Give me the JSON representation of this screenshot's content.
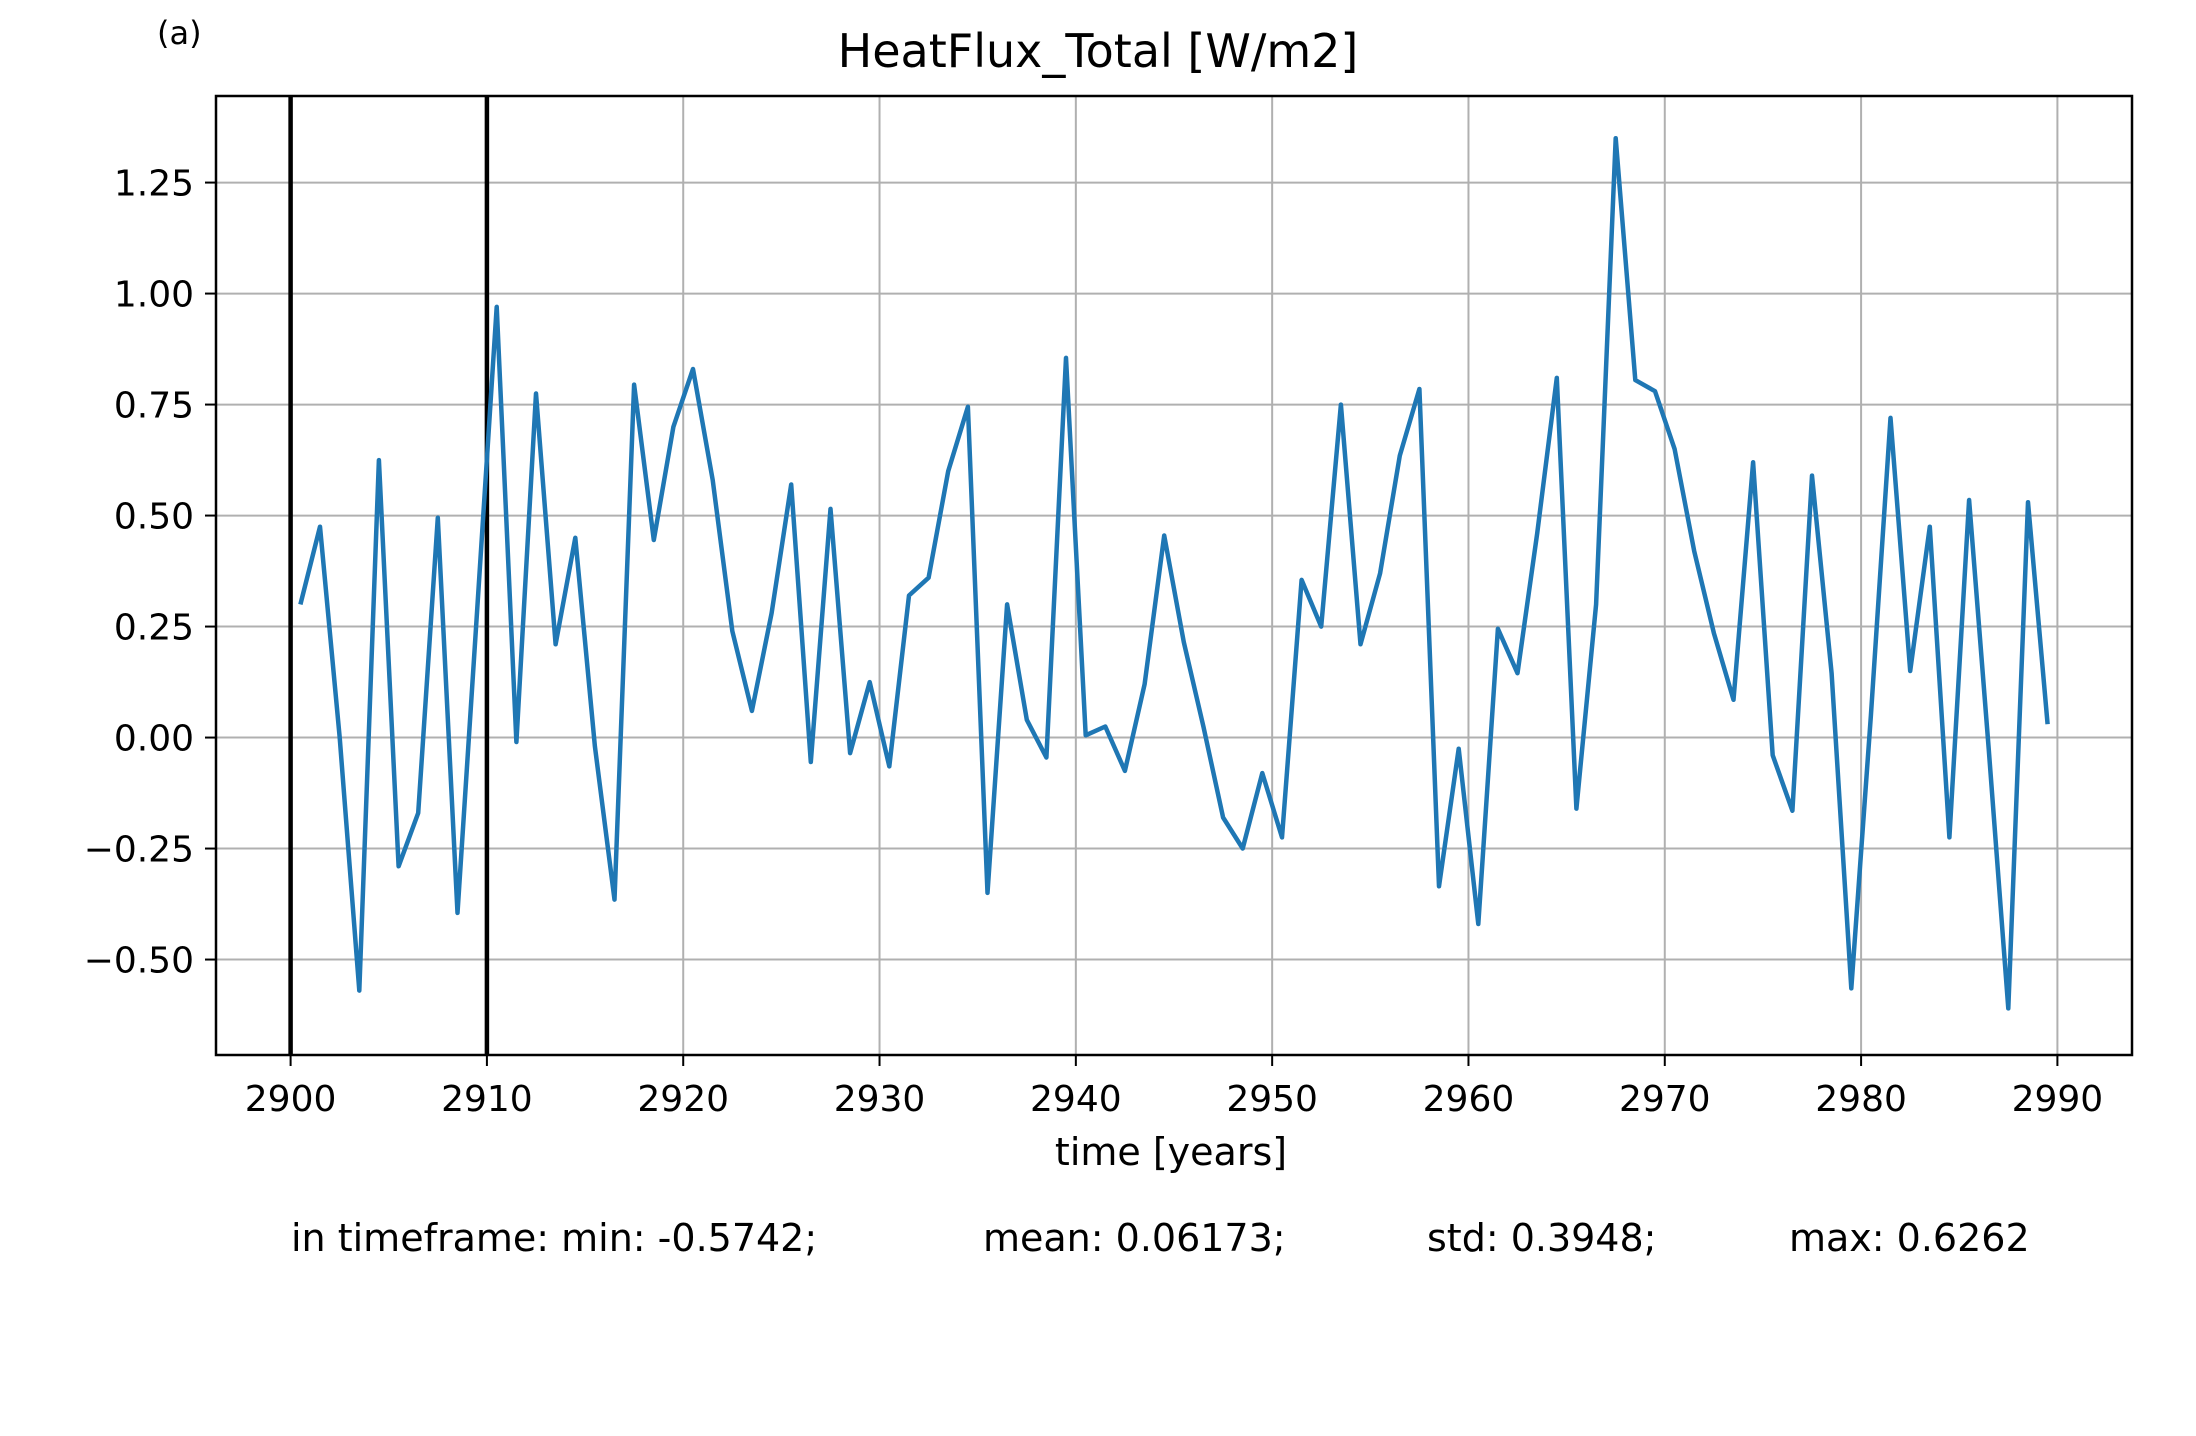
{
  "chart_data": {
    "type": "line",
    "panel_label": "(a)",
    "title": "HeatFlux_Total [W/m2]",
    "xlabel": "time [years]",
    "ylabel": "",
    "xlim": [
      2896.2,
      2993.8
    ],
    "ylim": [
      -0.715,
      1.445
    ],
    "x_ticks": [
      2900,
      2910,
      2920,
      2930,
      2940,
      2950,
      2960,
      2970,
      2980,
      2990
    ],
    "y_ticks": [
      -0.5,
      -0.25,
      0.0,
      0.25,
      0.5,
      0.75,
      1.0,
      1.25
    ],
    "y_tick_labels": [
      "−0.50",
      "−0.25",
      "0.00",
      "0.25",
      "0.50",
      "0.75",
      "1.00",
      "1.25"
    ],
    "grid": true,
    "line_color": "#1f77b4",
    "vertical_markers": [
      2900,
      2910
    ],
    "marker_color": "#000000",
    "series": [
      {
        "x": [
          2900.5,
          2901.5,
          2902.5,
          2903.5,
          2904.5,
          2905.5,
          2906.5,
          2907.5,
          2908.5,
          2909.5,
          2910.5,
          2911.5,
          2912.5,
          2913.5,
          2914.5,
          2915.5,
          2916.5,
          2917.5,
          2918.5,
          2919.5,
          2920.5,
          2921.5,
          2922.5,
          2923.5,
          2924.5,
          2925.5,
          2926.5,
          2927.5,
          2928.5,
          2929.5,
          2930.5,
          2931.5,
          2932.5,
          2933.5,
          2934.5,
          2935.5,
          2936.5,
          2937.5,
          2938.5,
          2939.5,
          2940.5,
          2941.5,
          2942.5,
          2943.5,
          2944.5,
          2945.5,
          2946.5,
          2947.5,
          2948.5,
          2949.5,
          2950.5,
          2951.5,
          2952.5,
          2953.5,
          2954.5,
          2955.5,
          2956.5,
          2957.5,
          2958.5,
          2959.5,
          2960.5,
          2961.5,
          2962.5,
          2963.5,
          2964.5,
          2965.5,
          2966.5,
          2967.5,
          2968.5,
          2969.5,
          2970.5,
          2971.5,
          2972.5,
          2973.5,
          2974.5,
          2975.5,
          2976.5,
          2977.5,
          2978.5,
          2979.5,
          2980.5,
          2981.5,
          2982.5,
          2983.5,
          2984.5,
          2985.5,
          2986.5,
          2987.5,
          2988.5,
          2989.5
        ],
        "y": [
          0.3,
          0.475,
          0.0,
          -0.57,
          0.625,
          -0.29,
          -0.17,
          0.495,
          -0.395,
          0.285,
          0.97,
          -0.01,
          0.775,
          0.21,
          0.45,
          -0.02,
          -0.365,
          0.795,
          0.445,
          0.7,
          0.83,
          0.58,
          0.24,
          0.06,
          0.28,
          0.57,
          -0.055,
          0.515,
          -0.035,
          0.125,
          -0.065,
          0.32,
          0.36,
          0.6,
          0.745,
          -0.35,
          0.3,
          0.04,
          -0.045,
          0.855,
          0.005,
          0.025,
          -0.075,
          0.12,
          0.455,
          0.215,
          0.025,
          -0.18,
          -0.25,
          -0.08,
          -0.225,
          0.355,
          0.25,
          0.75,
          0.21,
          0.37,
          0.635,
          0.785,
          -0.335,
          -0.025,
          -0.42,
          0.245,
          0.145,
          0.46,
          0.81,
          -0.16,
          0.3,
          1.35,
          0.805,
          0.78,
          0.65,
          0.42,
          0.235,
          0.085,
          0.62,
          -0.04,
          -0.165,
          0.59,
          0.145,
          -0.565,
          0.05,
          0.72,
          0.15,
          0.475,
          -0.225,
          0.535,
          -0.025,
          -0.61,
          0.53,
          0.03
        ]
      }
    ]
  },
  "stats": {
    "prefix": "in timeframe: min: -0.5742;",
    "mean": "mean: 0.06173;",
    "std": "std: 0.3948;",
    "max": "max: 0.6262"
  }
}
